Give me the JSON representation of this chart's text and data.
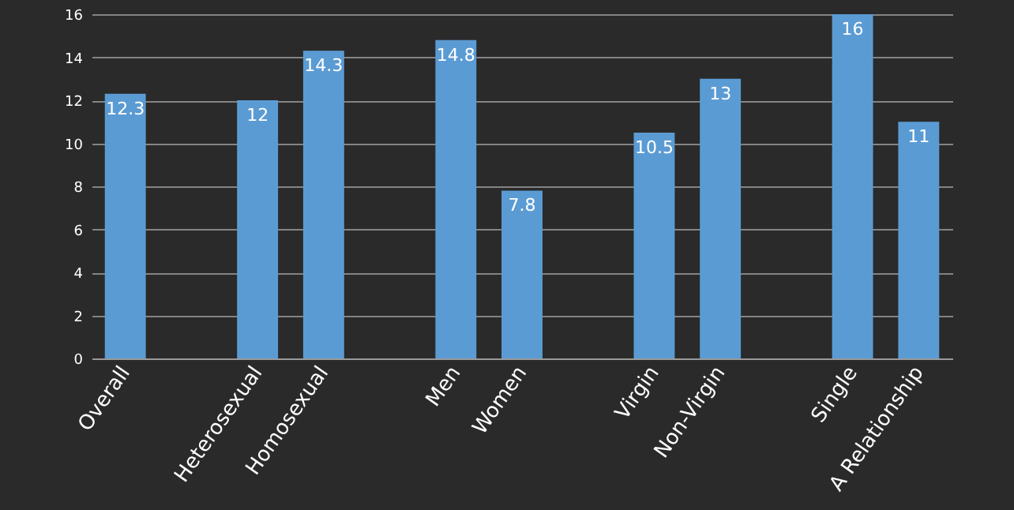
{
  "chart_data": {
    "type": "bar",
    "categories": [
      "Overall",
      null,
      "Heterosexual",
      "Homosexual",
      null,
      "Men",
      "Women",
      null,
      "Virgin",
      "Non-Virgin",
      null,
      "Single",
      "A Relationship"
    ],
    "values": [
      12.3,
      null,
      12,
      14.3,
      null,
      14.8,
      7.8,
      null,
      10.5,
      13,
      null,
      16,
      11
    ],
    "color": "#5b9bd3",
    "ylim": [
      0,
      16
    ],
    "yticks": [
      0,
      2,
      4,
      6,
      8,
      10,
      12,
      14,
      16
    ],
    "grid": "y",
    "data_labels": true
  }
}
